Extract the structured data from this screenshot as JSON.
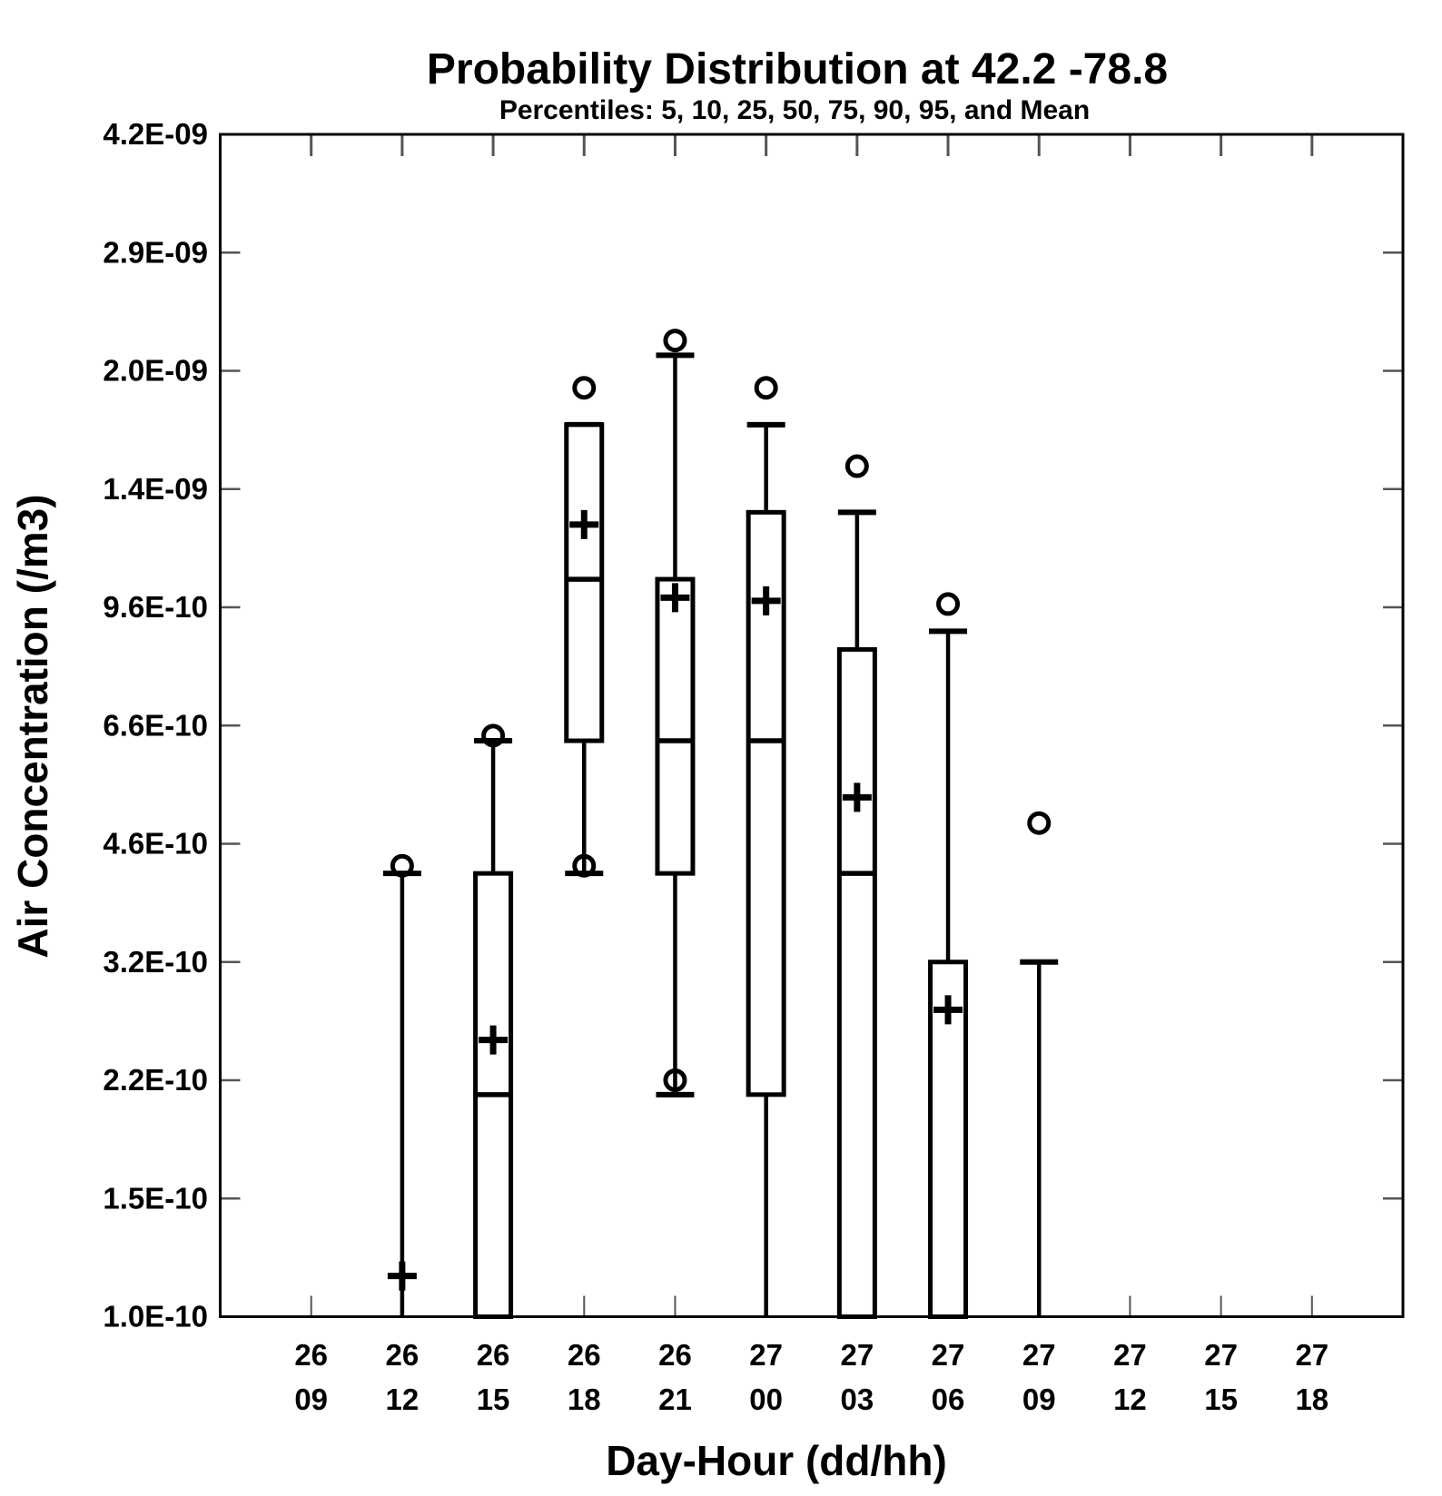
{
  "chart_data": {
    "type": "boxplot",
    "title": "Probability Distribution at  42.2  -78.8",
    "subtitle": "Percentiles: 5, 10, 25, 50, 75, 90, 95, and Mean",
    "xlabel": "Day-Hour (dd/hh)",
    "ylabel": "Air Concentration (/m3)",
    "location": {
      "latitude": "42.2",
      "longitude": "-78.8"
    },
    "percentiles_shown": [
      5,
      10,
      25,
      50,
      75,
      90,
      95
    ],
    "mean_marker": "plus",
    "outlier_marker": "circle",
    "y_axis": {
      "scale": "log",
      "range": [
        1e-10,
        4.2e-09
      ],
      "ticks": [
        {
          "label": "4.2E-09",
          "value": 4.2e-09
        },
        {
          "label": "2.9E-09",
          "value": 2.9e-09
        },
        {
          "label": "2.0E-09",
          "value": 2e-09
        },
        {
          "label": "1.4E-09",
          "value": 1.4e-09
        },
        {
          "label": "9.6E-10",
          "value": 9.6e-10
        },
        {
          "label": "6.6E-10",
          "value": 6.6e-10
        },
        {
          "label": "4.6E-10",
          "value": 4.6e-10
        },
        {
          "label": "3.2E-10",
          "value": 3.2e-10
        },
        {
          "label": "2.2E-10",
          "value": 2.2e-10
        },
        {
          "label": "1.5E-10",
          "value": 1.5e-10
        },
        {
          "label": "1.0E-10",
          "value": 1e-10
        }
      ]
    },
    "x_axis": {
      "tick_format": "day over hour",
      "categories": [
        "26/09",
        "26/12",
        "26/15",
        "26/18",
        "26/21",
        "27/00",
        "27/03",
        "27/06",
        "27/09",
        "27/12",
        "27/15",
        "27/18"
      ]
    },
    "groups": [
      {
        "day": "26",
        "hour": "09",
        "p5": null,
        "p10": null,
        "p25": null,
        "median": null,
        "p75": null,
        "p90": null,
        "p95": null,
        "mean": null,
        "clipped_below_axis": false
      },
      {
        "day": "26",
        "hour": "12",
        "p5": null,
        "p10": null,
        "p25": null,
        "median": null,
        "p75": null,
        "p90": 4.2e-10,
        "p95": 4.3e-10,
        "mean": 1.15e-10,
        "clipped_below_axis": true
      },
      {
        "day": "26",
        "hour": "15",
        "p5": null,
        "p10": null,
        "p25": null,
        "median": 2.1e-10,
        "p75": 4.2e-10,
        "p90": 6.3e-10,
        "p95": 6.4e-10,
        "mean": 2.5e-10,
        "clipped_below_axis": true
      },
      {
        "day": "26",
        "hour": "18",
        "p5": 4.3e-10,
        "p10": 4.2e-10,
        "p25": 6.3e-10,
        "median": 1.05e-09,
        "p75": 1.7e-09,
        "p90": 1.7e-09,
        "p95": 1.9e-09,
        "mean": 1.25e-09,
        "clipped_below_axis": false
      },
      {
        "day": "26",
        "hour": "21",
        "p5": 2.2e-10,
        "p10": 2.1e-10,
        "p25": 4.2e-10,
        "median": 6.3e-10,
        "p75": 1.05e-09,
        "p90": 2.1e-09,
        "p95": 2.2e-09,
        "mean": 9.9e-10,
        "clipped_below_axis": false
      },
      {
        "day": "27",
        "hour": "00",
        "p5": null,
        "p10": null,
        "p25": 2.1e-10,
        "median": 6.3e-10,
        "p75": 1.3e-09,
        "p90": 1.7e-09,
        "p95": 1.9e-09,
        "mean": 9.8e-10,
        "clipped_below_axis": true
      },
      {
        "day": "27",
        "hour": "03",
        "p5": null,
        "p10": null,
        "p25": null,
        "median": 4.2e-10,
        "p75": 8.4e-10,
        "p90": 1.3e-09,
        "p95": 1.5e-09,
        "mean": 5.3e-10,
        "clipped_below_axis": true
      },
      {
        "day": "27",
        "hour": "06",
        "p5": null,
        "p10": null,
        "p25": null,
        "median": null,
        "p75": 3.2e-10,
        "p90": 8.9e-10,
        "p95": 9.7e-10,
        "mean": 2.75e-10,
        "clipped_below_axis": true
      },
      {
        "day": "27",
        "hour": "09",
        "p5": null,
        "p10": null,
        "p25": null,
        "median": null,
        "p75": null,
        "p90": 3.2e-10,
        "p95": 4.9e-10,
        "mean": null,
        "clipped_below_axis": true
      },
      {
        "day": "27",
        "hour": "12",
        "p5": null,
        "p10": null,
        "p25": null,
        "median": null,
        "p75": null,
        "p90": null,
        "p95": null,
        "mean": null,
        "clipped_below_axis": false
      },
      {
        "day": "27",
        "hour": "15",
        "p5": null,
        "p10": null,
        "p25": null,
        "median": null,
        "p75": null,
        "p90": null,
        "p95": null,
        "mean": null,
        "clipped_below_axis": false
      },
      {
        "day": "27",
        "hour": "18",
        "p5": null,
        "p10": null,
        "p25": null,
        "median": null,
        "p75": null,
        "p90": null,
        "p95": null,
        "mean": null,
        "clipped_below_axis": false
      }
    ],
    "colors": {
      "foreground": "#000000",
      "background": "#ffffff",
      "tick_marks": "#555555"
    }
  }
}
